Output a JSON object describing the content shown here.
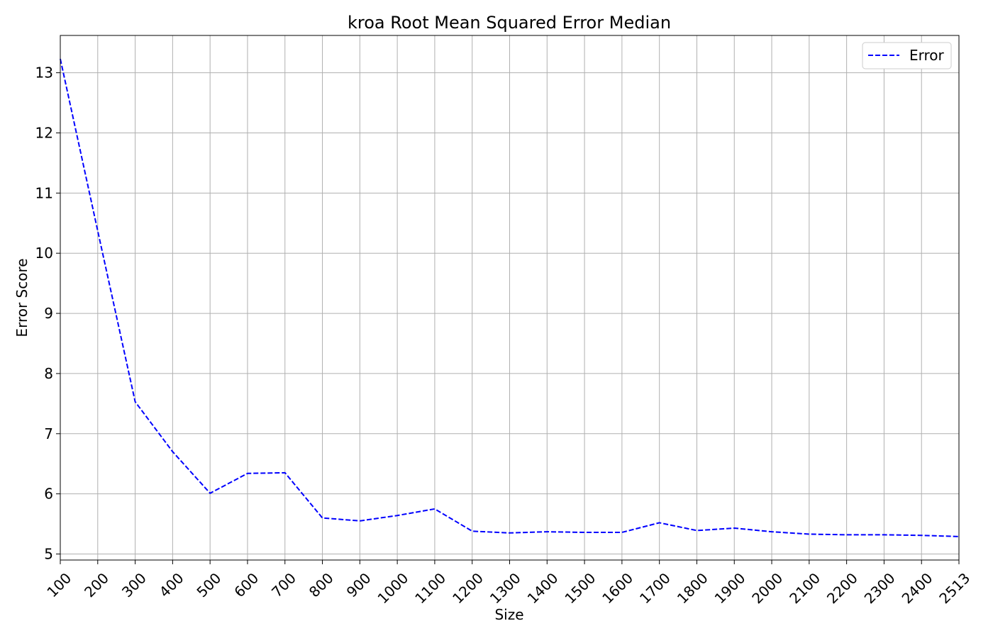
{
  "chart_data": {
    "type": "line",
    "title": "kroa Root Mean Squared Error Median",
    "xlabel": "Size",
    "ylabel": "Error Score",
    "categories": [
      "100",
      "200",
      "300",
      "400",
      "500",
      "600",
      "700",
      "800",
      "900",
      "1000",
      "1100",
      "1200",
      "1300",
      "1400",
      "1500",
      "1600",
      "1700",
      "1800",
      "1900",
      "2000",
      "2100",
      "2200",
      "2300",
      "2400",
      "2513"
    ],
    "series": [
      {
        "name": "Error",
        "color": "#0000ff",
        "line_style": "dashed",
        "values": [
          13.23,
          10.37,
          7.53,
          6.7,
          6.01,
          6.34,
          6.35,
          5.6,
          5.55,
          5.64,
          5.75,
          5.38,
          5.35,
          5.37,
          5.36,
          5.36,
          5.52,
          5.39,
          5.43,
          5.37,
          5.33,
          5.32,
          5.32,
          5.31,
          5.29
        ]
      }
    ],
    "yticks": [
      5,
      6,
      7,
      8,
      9,
      10,
      11,
      12,
      13
    ],
    "ylim": [
      4.9,
      13.62
    ],
    "grid": true,
    "legend_position": "top-right",
    "grid_color": "#b0b0b0"
  }
}
